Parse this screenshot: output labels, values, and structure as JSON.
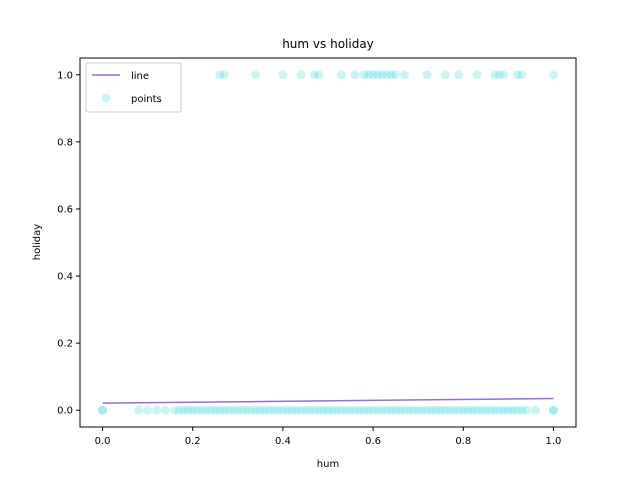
{
  "chart_data": {
    "type": "scatter",
    "title": "hum vs holiday",
    "xlabel": "hum",
    "ylabel": "holiday",
    "xlim": [
      -0.05,
      1.05
    ],
    "ylim": [
      -0.05,
      1.05
    ],
    "xticks": [
      0.0,
      0.2,
      0.4,
      0.6,
      0.8,
      1.0
    ],
    "yticks": [
      0.0,
      0.2,
      0.4,
      0.6,
      0.8,
      1.0
    ],
    "xtick_labels": [
      "0.0",
      "0.2",
      "0.4",
      "0.6",
      "0.8",
      "1.0"
    ],
    "ytick_labels": [
      "0.0",
      "0.2",
      "0.4",
      "0.6",
      "0.8",
      "1.0"
    ],
    "grid": false,
    "legend_position": "top-left",
    "series": [
      {
        "name": "line",
        "kind": "line",
        "color": "#9370db",
        "x": [
          0.0,
          1.0
        ],
        "y": [
          0.021,
          0.035
        ]
      },
      {
        "name": "points",
        "kind": "scatter",
        "color": "#00ced1",
        "x": [
          0.0,
          0.0,
          0.08,
          0.1,
          0.12,
          0.14,
          0.16,
          0.17,
          0.18,
          0.19,
          0.2,
          0.21,
          0.22,
          0.23,
          0.24,
          0.25,
          0.26,
          0.27,
          0.28,
          0.29,
          0.3,
          0.31,
          0.32,
          0.33,
          0.34,
          0.35,
          0.36,
          0.37,
          0.38,
          0.39,
          0.4,
          0.41,
          0.42,
          0.43,
          0.44,
          0.45,
          0.46,
          0.47,
          0.48,
          0.49,
          0.5,
          0.51,
          0.52,
          0.53,
          0.54,
          0.55,
          0.56,
          0.57,
          0.58,
          0.59,
          0.6,
          0.61,
          0.62,
          0.63,
          0.64,
          0.65,
          0.66,
          0.67,
          0.68,
          0.69,
          0.7,
          0.71,
          0.72,
          0.73,
          0.74,
          0.75,
          0.76,
          0.77,
          0.78,
          0.79,
          0.8,
          0.81,
          0.82,
          0.83,
          0.84,
          0.85,
          0.86,
          0.87,
          0.88,
          0.89,
          0.9,
          0.91,
          0.92,
          0.93,
          0.94,
          0.96,
          1.0,
          1.0,
          0.26,
          0.27,
          0.34,
          0.4,
          0.44,
          0.47,
          0.48,
          0.53,
          0.56,
          0.58,
          0.59,
          0.6,
          0.61,
          0.62,
          0.63,
          0.64,
          0.65,
          0.67,
          0.72,
          0.76,
          0.79,
          0.83,
          0.87,
          0.88,
          0.89,
          0.92,
          0.93,
          1.0
        ],
        "y": [
          0,
          0,
          0,
          0,
          0,
          0,
          0,
          0,
          0,
          0,
          0,
          0,
          0,
          0,
          0,
          0,
          0,
          0,
          0,
          0,
          0,
          0,
          0,
          0,
          0,
          0,
          0,
          0,
          0,
          0,
          0,
          0,
          0,
          0,
          0,
          0,
          0,
          0,
          0,
          0,
          0,
          0,
          0,
          0,
          0,
          0,
          0,
          0,
          0,
          0,
          0,
          0,
          0,
          0,
          0,
          0,
          0,
          0,
          0,
          0,
          0,
          0,
          0,
          0,
          0,
          0,
          0,
          0,
          0,
          0,
          0,
          0,
          0,
          0,
          0,
          0,
          0,
          0,
          0,
          0,
          0,
          0,
          0,
          0,
          0,
          0,
          0,
          0,
          1,
          1,
          1,
          1,
          1,
          1,
          1,
          1,
          1,
          1,
          1,
          1,
          1,
          1,
          1,
          1,
          1,
          1,
          1,
          1,
          1,
          1,
          1,
          1,
          1,
          1,
          1,
          1
        ]
      }
    ]
  }
}
